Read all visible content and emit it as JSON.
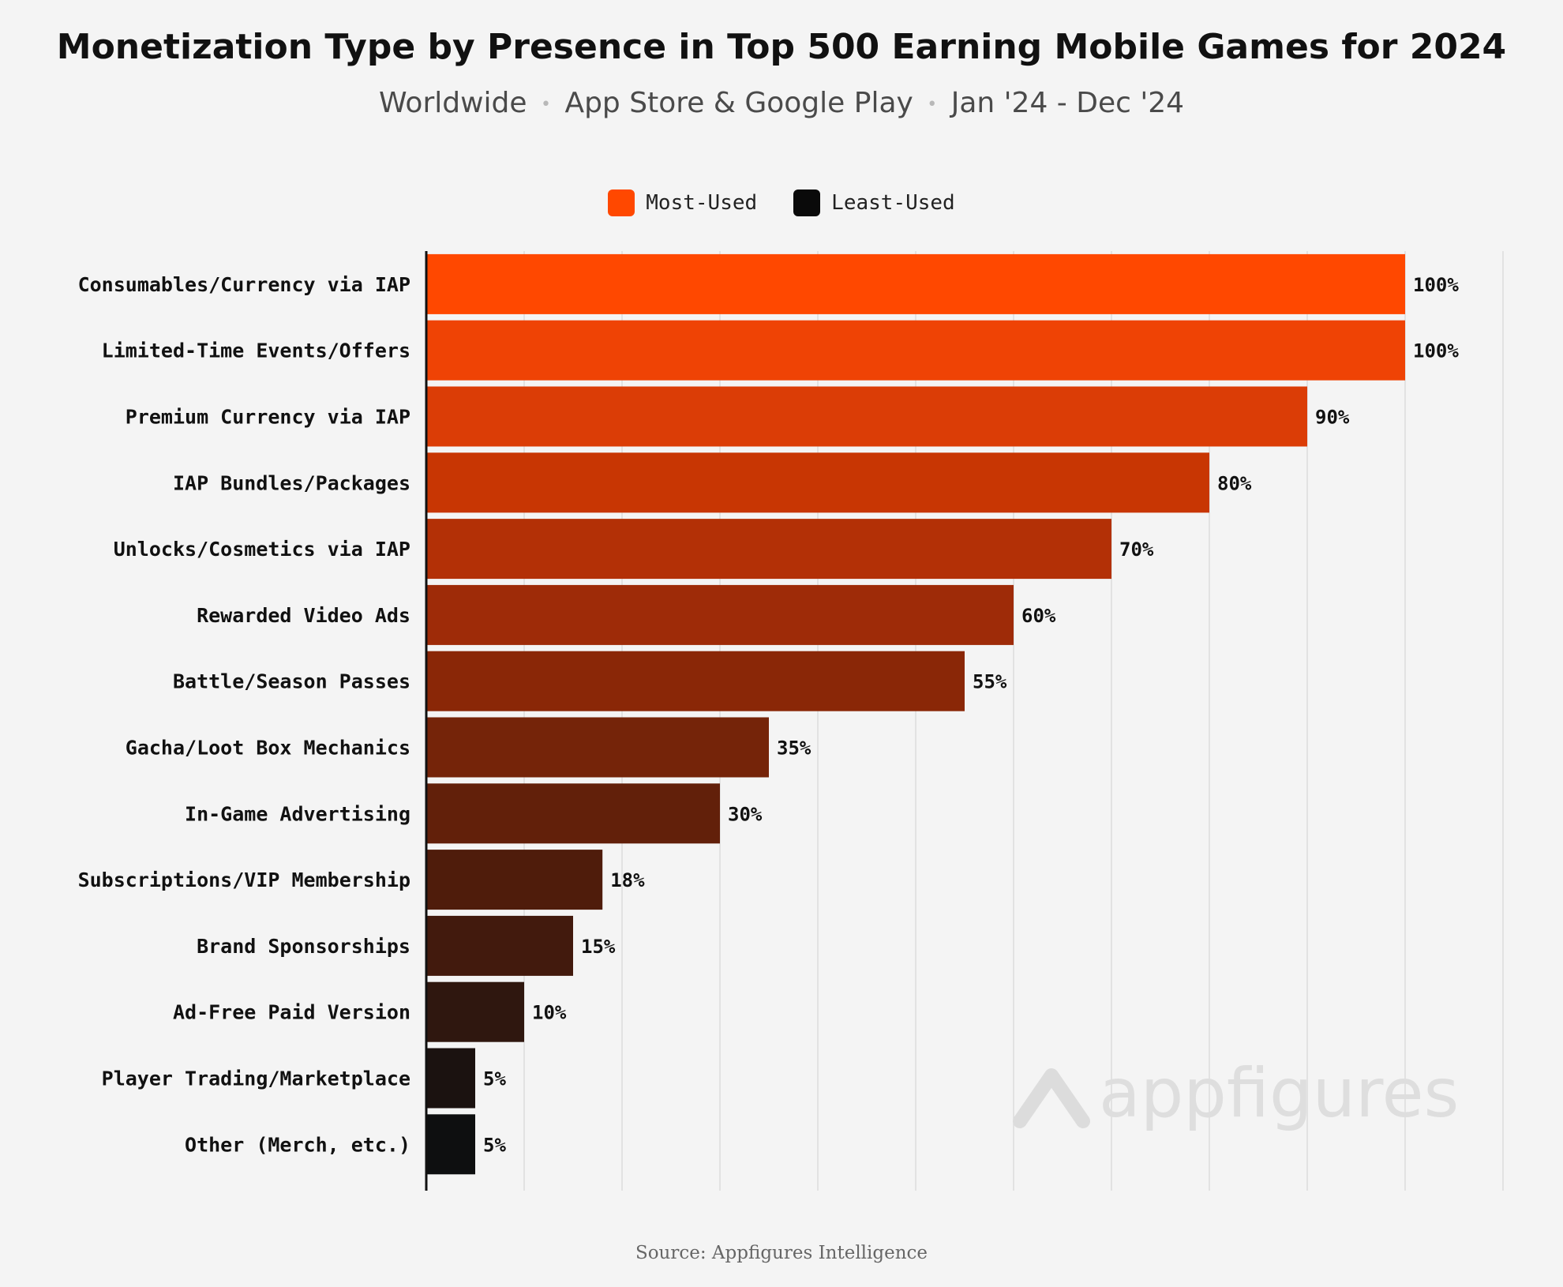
{
  "title": "Monetization Type by Presence in Top 500 Earning Mobile Games for 2024",
  "subtitle": {
    "parts": [
      "Worldwide",
      "App Store & Google Play",
      "Jan '24 - Dec '24"
    ],
    "separator": "•"
  },
  "legend": [
    {
      "label": "Most-Used",
      "color": "#ff4800"
    },
    {
      "label": "Least-Used",
      "color": "#0a0a0a"
    }
  ],
  "watermark": "appfigures",
  "source": "Source: Appfigures Intelligence",
  "chart_data": {
    "type": "bar",
    "orientation": "horizontal",
    "title": "Monetization Type by Presence in Top 500 Earning Mobile Games for 2024",
    "xlabel": "",
    "ylabel": "",
    "xlim": [
      0,
      110
    ],
    "grid": true,
    "value_suffix": "%",
    "categories": [
      "Consumables/Currency via IAP",
      "Limited-Time Events/Offers",
      "Premium Currency via IAP",
      "IAP Bundles/Packages",
      "Unlocks/Cosmetics via IAP",
      "Rewarded Video Ads",
      "Battle/Season Passes",
      "Gacha/Loot Box Mechanics",
      "In-Game Advertising",
      "Subscriptions/VIP Membership",
      "Brand Sponsorships",
      "Ad-Free Paid Version",
      "Player Trading/Marketplace",
      "Other (Merch, etc.)"
    ],
    "values": [
      100,
      100,
      90,
      80,
      70,
      60,
      55,
      35,
      30,
      18,
      15,
      10,
      5,
      5
    ],
    "colors": [
      "#ff4800",
      "#ef4305",
      "#db3d06",
      "#c83603",
      "#b33006",
      "#9e2b08",
      "#8a2707",
      "#752409",
      "#62200a",
      "#4f1c0b",
      "#421a0d",
      "#2f170f",
      "#1b1210",
      "#0e0f10"
    ]
  }
}
